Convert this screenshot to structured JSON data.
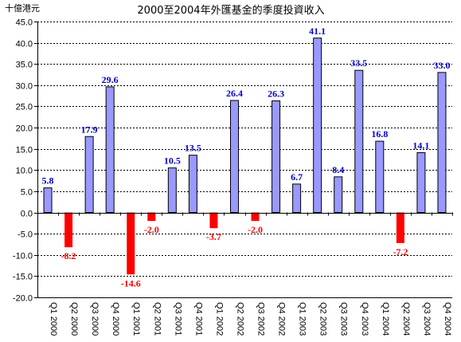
{
  "chart_data": {
    "type": "bar",
    "title": "2000至2004年外匯基金的季度投資收入",
    "unit_label": "十億港元",
    "categories": [
      "Q1 2000",
      "Q2 2000",
      "Q3 2000",
      "Q4 2000",
      "Q1 2001",
      "Q2 2001",
      "Q3 2001",
      "Q4 2001",
      "Q1 2002",
      "Q2 2002",
      "Q3 2002",
      "Q4 2002",
      "Q1 2003",
      "Q2 2003",
      "Q3 2003",
      "Q4 2003",
      "Q1 2004",
      "Q2 2004",
      "Q3 2004",
      "Q4 2004"
    ],
    "values": [
      5.8,
      -8.2,
      17.9,
      29.6,
      -14.6,
      -2.0,
      10.5,
      13.5,
      -3.7,
      26.4,
      -2.0,
      26.3,
      6.7,
      41.1,
      8.4,
      33.5,
      16.8,
      -7.2,
      14.1,
      33.0
    ],
    "labels": [
      "5.8",
      "-8.2",
      "17.9",
      "29.6",
      "-14.6",
      "-2.0",
      "10.5",
      "13.5",
      "-3.7",
      "26.4",
      "-2.0",
      "26.3",
      "6.7",
      "41.1",
      "8.4",
      "33.5",
      "16.8",
      "-7.2",
      "14.1",
      "33.0"
    ],
    "yticks": [
      "45.0",
      "40.0",
      "35.0",
      "30.0",
      "25.0",
      "20.0",
      "15.0",
      "10.0",
      "5.0",
      "0.0",
      "-5.0",
      "-10.0",
      "-15.0",
      "-20.0"
    ],
    "ylim": [
      -20,
      45
    ],
    "ystep": 5,
    "grid": true,
    "legend": "none",
    "colors": {
      "positive": "#9999ff",
      "negative": "#ff0000",
      "positive_label": "#0000cc",
      "negative_label": "#ff0000"
    }
  }
}
